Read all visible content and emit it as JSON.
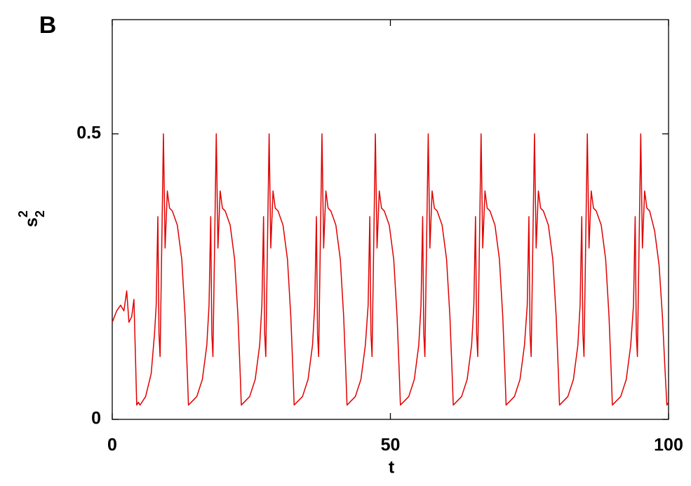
{
  "chart_data": {
    "type": "line",
    "panel_label": "B",
    "xlabel": "t",
    "ylabel": {
      "text": "s",
      "sup": "2",
      "sub": "2"
    },
    "color": "#e00000",
    "xlim": [
      0,
      100
    ],
    "ylim": [
      0,
      0.7
    ],
    "xticks": [
      0,
      50,
      100
    ],
    "yticks": [
      0,
      0.5
    ],
    "x": [
      0,
      0.8,
      1.5,
      2.1,
      2.6,
      3.0,
      3.5,
      3.9,
      4.2,
      4.4,
      4.7,
      5.0,
      6.0,
      7.0,
      7.6,
      7.9,
      8.2,
      8.4,
      8.6,
      9.2,
      9.5,
      9.9,
      10.3,
      10.8,
      11.7,
      12.5,
      13.1,
      13.5,
      13.7,
      14.2,
      15.2,
      16.2,
      17.0,
      17.4,
      17.7,
      17.9,
      18.1,
      18.7,
      19.0,
      19.4,
      19.8,
      20.3,
      21.2,
      22.0,
      22.6,
      23.0,
      23.2,
      23.7,
      24.7,
      25.7,
      26.5,
      26.9,
      27.2,
      27.4,
      27.6,
      28.2,
      28.5,
      28.9,
      29.3,
      29.8,
      30.7,
      31.5,
      32.1,
      32.5,
      32.7,
      33.2,
      34.2,
      35.2,
      36.0,
      36.4,
      36.7,
      36.9,
      37.1,
      37.7,
      38.0,
      38.4,
      38.8,
      39.3,
      40.2,
      41.0,
      41.6,
      42.0,
      42.2,
      42.7,
      43.7,
      44.7,
      45.5,
      46.0,
      46.3,
      46.5,
      46.7,
      47.3,
      47.6,
      48.0,
      48.4,
      48.9,
      49.8,
      50.6,
      51.2,
      51.6,
      51.8,
      52.3,
      53.3,
      54.3,
      55.1,
      55.5,
      55.8,
      56.0,
      56.2,
      56.8,
      57.1,
      57.5,
      57.9,
      58.4,
      59.3,
      60.1,
      60.7,
      61.1,
      61.3,
      61.8,
      62.8,
      63.8,
      64.6,
      65.0,
      65.3,
      65.5,
      65.7,
      66.3,
      66.6,
      67.0,
      67.4,
      67.9,
      68.8,
      69.6,
      70.2,
      70.6,
      70.8,
      71.3,
      72.3,
      73.3,
      74.1,
      74.6,
      74.9,
      75.1,
      75.3,
      75.9,
      76.2,
      76.6,
      77.0,
      77.5,
      78.4,
      79.2,
      79.8,
      80.2,
      80.4,
      80.9,
      81.9,
      82.9,
      83.7,
      84.1,
      84.4,
      84.6,
      84.8,
      85.4,
      85.7,
      86.1,
      86.5,
      87.0,
      87.9,
      88.7,
      89.3,
      89.7,
      89.9,
      90.4,
      91.4,
      92.4,
      93.2,
      93.7,
      94.0,
      94.2,
      94.4,
      95.0,
      95.3,
      95.7,
      96.1,
      96.6,
      97.5,
      98.3,
      98.9,
      99.4,
      99.7,
      100
    ],
    "values": [
      0.17,
      0.19,
      0.2,
      0.19,
      0.225,
      0.17,
      0.18,
      0.21,
      0.1,
      0.025,
      0.03,
      0.025,
      0.04,
      0.08,
      0.15,
      0.2,
      0.355,
      0.15,
      0.11,
      0.5,
      0.3,
      0.4,
      0.37,
      0.365,
      0.34,
      0.28,
      0.18,
      0.08,
      0.025,
      0.03,
      0.04,
      0.07,
      0.13,
      0.2,
      0.355,
      0.15,
      0.11,
      0.5,
      0.3,
      0.4,
      0.37,
      0.365,
      0.34,
      0.28,
      0.18,
      0.08,
      0.025,
      0.03,
      0.04,
      0.07,
      0.13,
      0.2,
      0.355,
      0.15,
      0.11,
      0.5,
      0.3,
      0.4,
      0.37,
      0.365,
      0.34,
      0.28,
      0.18,
      0.08,
      0.025,
      0.03,
      0.04,
      0.07,
      0.13,
      0.2,
      0.355,
      0.15,
      0.11,
      0.5,
      0.3,
      0.4,
      0.37,
      0.365,
      0.34,
      0.28,
      0.18,
      0.08,
      0.025,
      0.03,
      0.04,
      0.07,
      0.13,
      0.2,
      0.355,
      0.15,
      0.11,
      0.5,
      0.3,
      0.4,
      0.37,
      0.365,
      0.34,
      0.28,
      0.18,
      0.08,
      0.025,
      0.03,
      0.04,
      0.07,
      0.13,
      0.2,
      0.355,
      0.15,
      0.11,
      0.5,
      0.3,
      0.4,
      0.37,
      0.365,
      0.34,
      0.28,
      0.18,
      0.08,
      0.025,
      0.03,
      0.04,
      0.07,
      0.13,
      0.2,
      0.355,
      0.15,
      0.11,
      0.5,
      0.3,
      0.4,
      0.37,
      0.365,
      0.34,
      0.28,
      0.18,
      0.08,
      0.025,
      0.03,
      0.04,
      0.07,
      0.13,
      0.2,
      0.355,
      0.15,
      0.11,
      0.5,
      0.3,
      0.4,
      0.37,
      0.365,
      0.34,
      0.28,
      0.18,
      0.08,
      0.025,
      0.03,
      0.04,
      0.07,
      0.13,
      0.2,
      0.355,
      0.15,
      0.11,
      0.5,
      0.3,
      0.4,
      0.37,
      0.365,
      0.34,
      0.28,
      0.18,
      0.08,
      0.025,
      0.03,
      0.04,
      0.07,
      0.13,
      0.2,
      0.355,
      0.15,
      0.11,
      0.5,
      0.3,
      0.4,
      0.37,
      0.365,
      0.33,
      0.27,
      0.18,
      0.08,
      0.025,
      0.03
    ]
  }
}
